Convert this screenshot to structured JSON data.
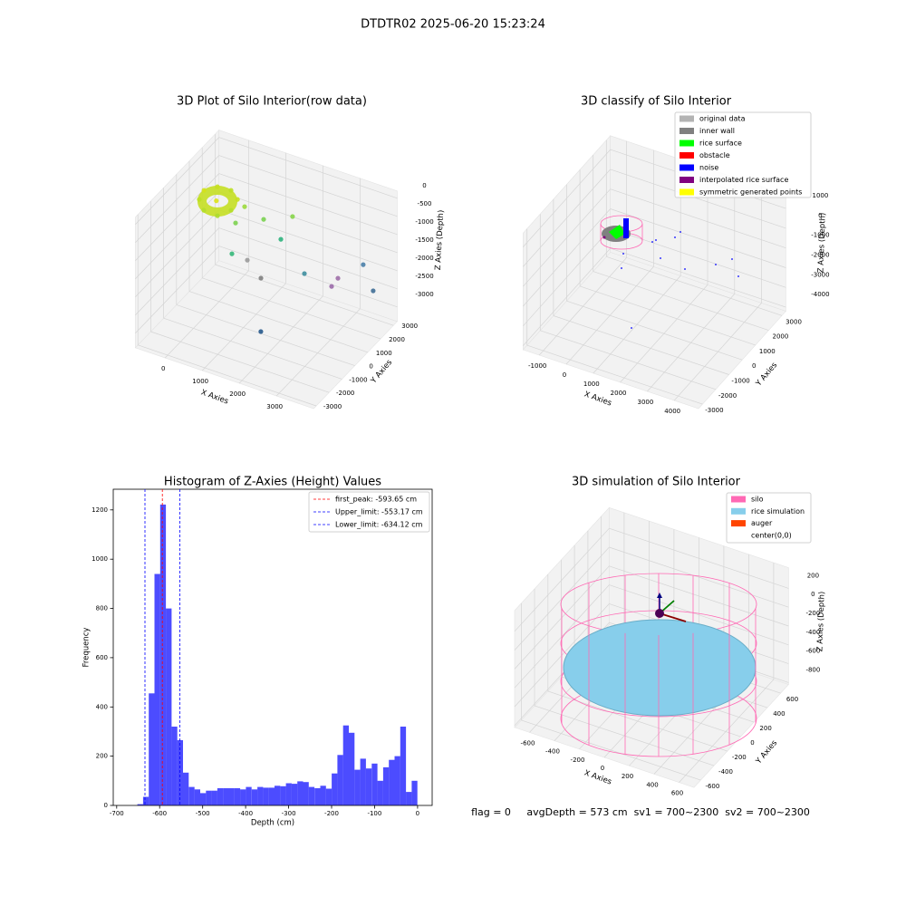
{
  "figure_title": "DTDTR02 2025-06-20 15:23:24",
  "annotation": "flag = 0     avgDepth = 573 cm  sv1 = 700~2300  sv2 = 700~2300",
  "chart_data": [
    {
      "type": "scatter3d",
      "title": "3D Plot of Silo Interior(row data)",
      "xlabel": "X Axies",
      "ylabel": "Y Axies",
      "zlabel": "Z Axies (Depth)",
      "xlim": [
        -800,
        4000
      ],
      "ylim": [
        -3200,
        3300
      ],
      "zlim": [
        -3400,
        200
      ],
      "xticks": [
        0,
        1000,
        2000,
        3000
      ],
      "yticks": [
        -3000,
        -2000,
        -1000,
        0,
        1000,
        2000,
        3000
      ],
      "zticks": [
        -3000,
        -2500,
        -2000,
        -1500,
        -1000,
        -500,
        0
      ],
      "x": [
        -357,
        -153,
        194,
        499,
        581,
        411,
        30,
        -273,
        100,
        574,
        567,
        1136,
        1670,
        1380,
        670,
        823,
        1450,
        2526,
        2730,
        3332,
        2760,
        3763,
        1573
      ],
      "y": [
        849,
        1313,
        1370,
        983,
        251,
        -315,
        -270,
        253,
        500,
        1325,
        643,
        1181,
        1890,
        1816,
        64,
        818,
        61,
        335,
        2351,
        2583,
        1772,
        2113,
        -295
      ],
      "z": [
        -400,
        -400,
        -400,
        -400,
        -400,
        -400,
        -400,
        -400,
        -400,
        -700,
        -900,
        -800,
        -800,
        -1500,
        -1500,
        -1900,
        -1900,
        -1500,
        -2300,
        -1800,
        -2300,
        -2200,
        -3200
      ],
      "colors": [
        "#d2e21b",
        "#c7e020",
        "#bddf26",
        "#c7e020",
        "#b5de2b",
        "#addc30",
        "#b5de2b",
        "#bddf26",
        "#dde318",
        "#9bd93c",
        "#7cd250",
        "#7ad151",
        "#86d549",
        "#2db27d",
        "#35b779",
        "#9a9a9a",
        "#7f7f7f",
        "#3e8e9e",
        "#9e6fa8",
        "#4a7fa8",
        "#9b6aaa",
        "#3f6e96",
        "#26598c"
      ]
    },
    {
      "type": "scatter3d",
      "title": "3D classify of Silo Interior",
      "xlabel": "X Axies",
      "ylabel": "Y Axies",
      "zlabel": "Z Axies (Depth)",
      "xlim": [
        -1600,
        4900
      ],
      "ylim": [
        -3300,
        3300
      ],
      "zlim": [
        -4200,
        1700
      ],
      "xticks": [
        -1000,
        0,
        1000,
        2000,
        3000,
        4000
      ],
      "yticks": [
        -3000,
        -2000,
        -1000,
        0,
        1000,
        2000,
        3000
      ],
      "zticks": [
        -4000,
        -3000,
        -2000,
        -1000,
        0,
        1000
      ],
      "legend": [
        {
          "name": "original data",
          "color": "#b3b3b3"
        },
        {
          "name": "inner wall",
          "color": "#808080"
        },
        {
          "name": "rice surface",
          "color": "#00ff00"
        },
        {
          "name": "obstacle",
          "color": "#ff0000"
        },
        {
          "name": "noise",
          "color": "#0000ff"
        },
        {
          "name": "interpolated rice surface",
          "color": "#800080"
        },
        {
          "name": "symmetric generated points",
          "color": "#ffff00"
        }
      ]
    },
    {
      "type": "histogram",
      "title": "Histogram of Z-Axies (Height) Values",
      "xlabel": "Depth (cm)",
      "ylabel": "Frequency",
      "color": "#0000ff",
      "bins": [
        -652,
        -638.7,
        -625.4,
        -612.1,
        -598.8,
        -585.5,
        -572.2,
        -558.9,
        -545.6,
        -532.3,
        -519,
        -505.7,
        -492.4,
        -479.1,
        -465.8,
        -452.5,
        -439.2,
        -425.9,
        -412.6,
        -399.3,
        -386,
        -372.7,
        -359.4,
        -346.1,
        -332.8,
        -319.5,
        -306.2,
        -292.9,
        -279.6,
        -266.3,
        -253,
        -239.7,
        -226.4,
        -213.1,
        -199.8,
        -186.5,
        -173.2,
        -159.9,
        -146.6,
        -133.3,
        -120,
        -106.7,
        -93.4,
        -80.1,
        -66.8,
        -53.5,
        -40.2,
        -26.9,
        -13.6,
        -0.3
      ],
      "counts": [
        5,
        35,
        455,
        940,
        1222,
        800,
        320,
        265,
        133,
        75,
        65,
        50,
        60,
        60,
        70,
        70,
        70,
        70,
        65,
        75,
        65,
        75,
        72,
        72,
        80,
        78,
        90,
        88,
        98,
        95,
        75,
        70,
        80,
        68,
        130,
        205,
        325,
        295,
        145,
        190,
        150,
        170,
        100,
        155,
        185,
        200,
        320,
        55,
        100
      ],
      "xlim": [
        -708,
        34
      ],
      "ylim": [
        0,
        1284
      ],
      "xticks": [
        -700,
        -600,
        -500,
        -400,
        -300,
        -200,
        -100,
        0
      ],
      "yticks": [
        0,
        200,
        400,
        600,
        800,
        1000,
        1200
      ],
      "vlines": [
        {
          "name": "first_peak: -593.65 cm",
          "value": -593.65,
          "color": "#ff0000"
        },
        {
          "name": "Upper_limit: -553.17 cm",
          "value": -553.17,
          "color": "#0000ff"
        },
        {
          "name": "Lower_limit: -634.12 cm",
          "value": -634.12,
          "color": "#0000ff"
        }
      ],
      "legend_loc": "upper right"
    },
    {
      "type": "surface3d",
      "title": "3D simulation of Silo Interior",
      "xlabel": "X Axies",
      "ylabel": "Y Axies",
      "zlabel": "Z Axies (Depth)",
      "xlim": [
        -720,
        720
      ],
      "ylim": [
        -700,
        720
      ],
      "zlim": [
        -820,
        420
      ],
      "xticks": [
        -600,
        -400,
        -200,
        0,
        200,
        400,
        600
      ],
      "yticks": [
        -600,
        -400,
        -200,
        0,
        200,
        400,
        600
      ],
      "zticks": [
        -800,
        -600,
        -400,
        -200,
        0,
        200
      ],
      "legend": [
        {
          "name": "silo",
          "color": "#ff69b4"
        },
        {
          "name": "rice simulation",
          "color": "#87ceeb"
        },
        {
          "name": "auger",
          "color": "#ff4500"
        },
        {
          "name": "center(0,0)",
          "color": "#ffffff"
        }
      ]
    }
  ]
}
